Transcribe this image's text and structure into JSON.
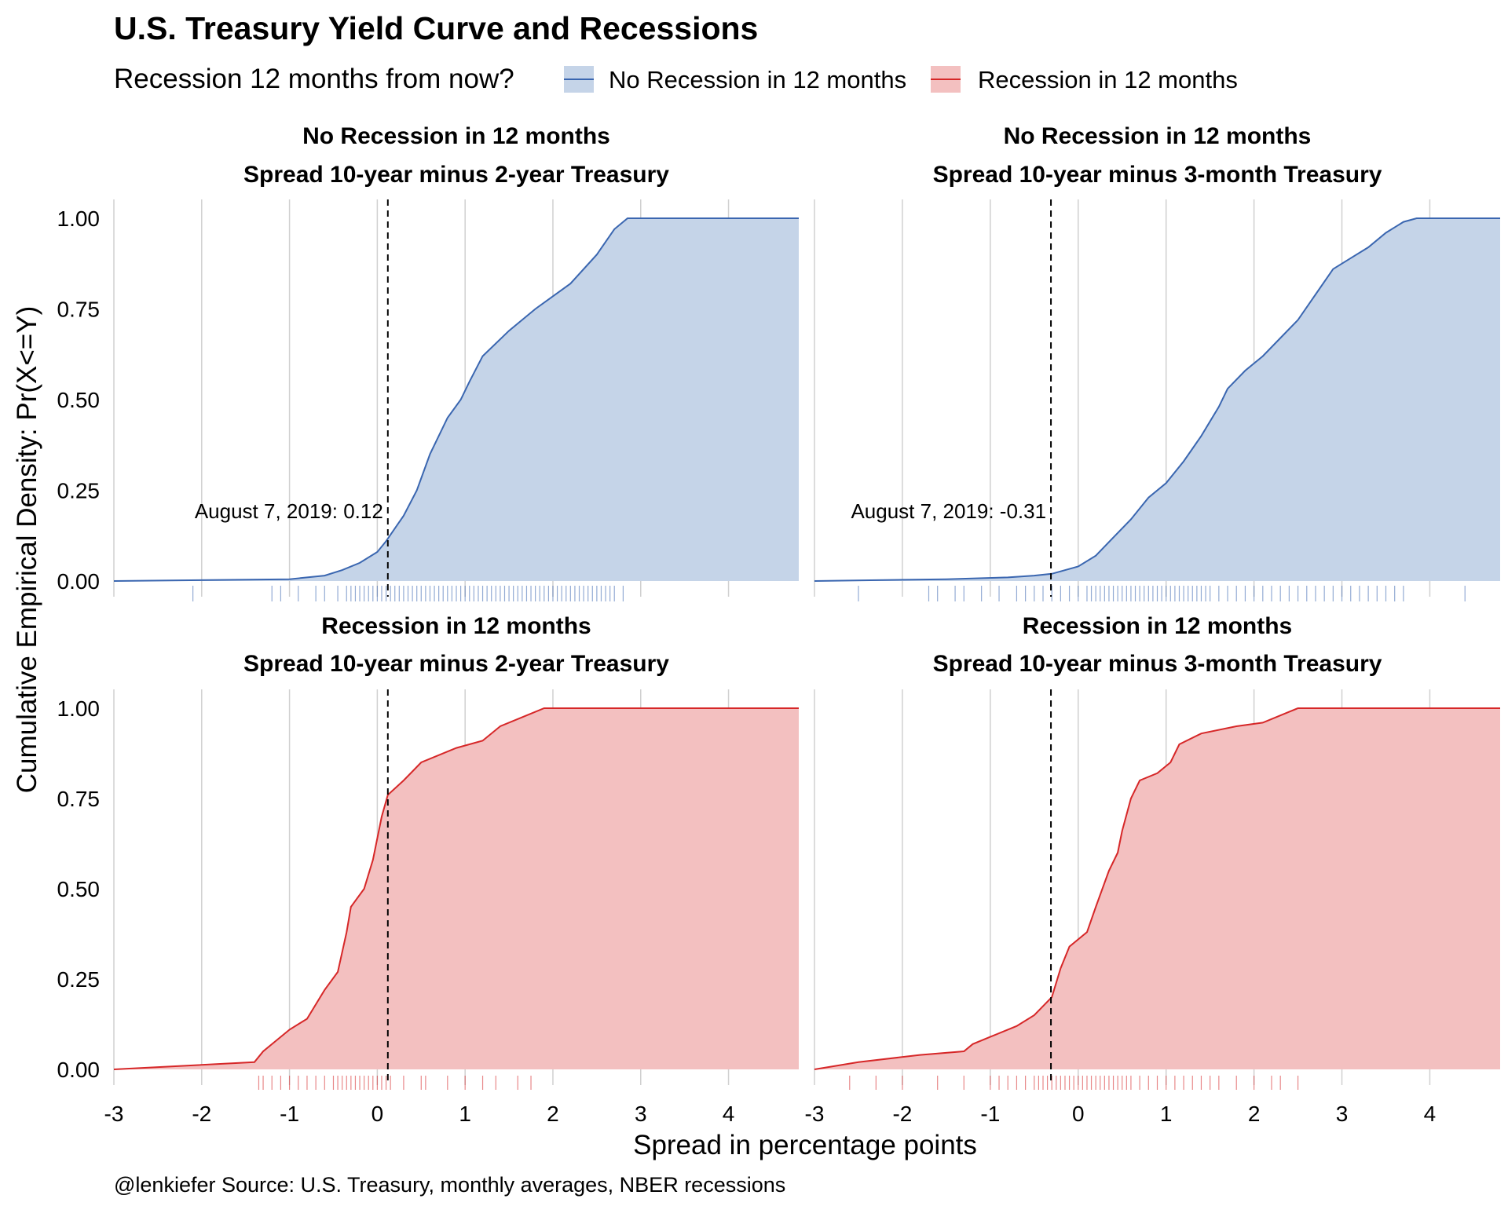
{
  "title": "U.S. Treasury Yield Curve and Recessions",
  "legend": {
    "title": "Recession 12 months from now?",
    "items": [
      {
        "label": "No Recession in 12 months",
        "fill": "#c5d4e8",
        "line": "#3a66b0"
      },
      {
        "label": "Recession in 12 months",
        "fill": "#f3c0c0",
        "line": "#d62728"
      }
    ]
  },
  "xlabel": "Spread in percentage points",
  "ylabel": "Cumulative Empirical Density: Pr(X<=Y)",
  "caption": "@lenkiefer Source: U.S. Treasury, monthly averages, NBER recessions",
  "chart_data": [
    {
      "type": "area",
      "panel": "top-left",
      "strip": [
        "No Recession in 12 months",
        "Spread 10-year minus 2-year Treasury"
      ],
      "series": "No Recession in 12 months",
      "xlim": [
        -3,
        4.8
      ],
      "ylim": [
        0,
        1
      ],
      "x_ticks": [
        -3,
        -2,
        -1,
        0,
        1,
        2,
        3,
        4
      ],
      "y_ticks": [
        "0.00",
        "0.25",
        "0.50",
        "0.75",
        "1.00"
      ],
      "vline": 0.12,
      "annotation": "August 7, 2019: 0.12",
      "points": [
        [
          -3,
          0
        ],
        [
          -1,
          0.005
        ],
        [
          -0.6,
          0.015
        ],
        [
          -0.4,
          0.03
        ],
        [
          -0.2,
          0.05
        ],
        [
          0,
          0.08
        ],
        [
          0.1,
          0.11
        ],
        [
          0.3,
          0.18
        ],
        [
          0.45,
          0.25
        ],
        [
          0.6,
          0.35
        ],
        [
          0.8,
          0.45
        ],
        [
          0.95,
          0.5
        ],
        [
          1.05,
          0.55
        ],
        [
          1.2,
          0.62
        ],
        [
          1.5,
          0.69
        ],
        [
          1.8,
          0.75
        ],
        [
          2.2,
          0.82
        ],
        [
          2.5,
          0.9
        ],
        [
          2.7,
          0.97
        ],
        [
          2.85,
          1.0
        ],
        [
          4.8,
          1.0
        ]
      ],
      "rug": [
        -2.1,
        -1.2,
        -1.1,
        -0.9,
        -0.7,
        -0.6,
        -0.45,
        -0.35,
        -0.3,
        -0.25,
        -0.2,
        -0.15,
        -0.1,
        -0.05,
        0,
        0.05,
        0.1,
        0.15,
        0.2,
        0.25,
        0.3,
        0.35,
        0.4,
        0.45,
        0.5,
        0.55,
        0.6,
        0.65,
        0.7,
        0.75,
        0.8,
        0.85,
        0.9,
        0.95,
        1.0,
        1.05,
        1.1,
        1.15,
        1.2,
        1.25,
        1.3,
        1.35,
        1.4,
        1.45,
        1.5,
        1.55,
        1.6,
        1.65,
        1.7,
        1.75,
        1.8,
        1.85,
        1.9,
        1.95,
        2.0,
        2.05,
        2.1,
        2.15,
        2.2,
        2.25,
        2.3,
        2.35,
        2.4,
        2.45,
        2.5,
        2.55,
        2.6,
        2.65,
        2.7,
        2.8
      ]
    },
    {
      "type": "area",
      "panel": "top-right",
      "strip": [
        "No Recession in 12 months",
        "Spread 10-year minus 3-month Treasury"
      ],
      "series": "No Recession in 12 months",
      "xlim": [
        -3,
        4.8
      ],
      "ylim": [
        0,
        1
      ],
      "x_ticks": [
        -3,
        -2,
        -1,
        0,
        1,
        2,
        3,
        4
      ],
      "y_ticks": [
        "0.00",
        "0.25",
        "0.50",
        "0.75",
        "1.00"
      ],
      "vline": -0.31,
      "annotation": "August 7, 2019: -0.31",
      "points": [
        [
          -3,
          0
        ],
        [
          -1.5,
          0.005
        ],
        [
          -0.8,
          0.01
        ],
        [
          -0.5,
          0.015
        ],
        [
          -0.3,
          0.02
        ],
        [
          0,
          0.04
        ],
        [
          0.2,
          0.07
        ],
        [
          0.4,
          0.12
        ],
        [
          0.6,
          0.17
        ],
        [
          0.8,
          0.23
        ],
        [
          1.0,
          0.27
        ],
        [
          1.2,
          0.33
        ],
        [
          1.4,
          0.4
        ],
        [
          1.6,
          0.48
        ],
        [
          1.7,
          0.53
        ],
        [
          1.9,
          0.58
        ],
        [
          2.1,
          0.62
        ],
        [
          2.3,
          0.67
        ],
        [
          2.5,
          0.72
        ],
        [
          2.7,
          0.79
        ],
        [
          2.9,
          0.86
        ],
        [
          3.1,
          0.89
        ],
        [
          3.3,
          0.92
        ],
        [
          3.5,
          0.96
        ],
        [
          3.7,
          0.99
        ],
        [
          3.85,
          1.0
        ],
        [
          4.8,
          1.0
        ]
      ],
      "rug": [
        -2.5,
        -1.7,
        -1.6,
        -1.4,
        -1.3,
        -1.1,
        -0.9,
        -0.7,
        -0.6,
        -0.5,
        -0.4,
        -0.3,
        -0.2,
        -0.1,
        0,
        0.1,
        0.15,
        0.2,
        0.25,
        0.3,
        0.35,
        0.4,
        0.45,
        0.5,
        0.55,
        0.6,
        0.65,
        0.7,
        0.75,
        0.8,
        0.85,
        0.9,
        0.95,
        1.0,
        1.05,
        1.1,
        1.15,
        1.2,
        1.25,
        1.3,
        1.35,
        1.4,
        1.45,
        1.5,
        1.6,
        1.7,
        1.8,
        1.9,
        2.0,
        2.1,
        2.2,
        2.3,
        2.4,
        2.5,
        2.6,
        2.7,
        2.8,
        2.9,
        3.0,
        3.1,
        3.2,
        3.3,
        3.4,
        3.5,
        3.6,
        3.7,
        4.4
      ]
    },
    {
      "type": "area",
      "panel": "bottom-left",
      "strip": [
        "Recession in 12 months",
        "Spread 10-year minus 2-year Treasury"
      ],
      "series": "Recession in 12 months",
      "xlim": [
        -3,
        4.8
      ],
      "ylim": [
        0,
        1
      ],
      "x_ticks": [
        -3,
        -2,
        -1,
        0,
        1,
        2,
        3,
        4
      ],
      "y_ticks": [
        "0.00",
        "0.25",
        "0.50",
        "0.75",
        "1.00"
      ],
      "vline": 0.12,
      "points": [
        [
          -3,
          0
        ],
        [
          -1.4,
          0.02
        ],
        [
          -1.3,
          0.05
        ],
        [
          -1.1,
          0.09
        ],
        [
          -1.0,
          0.11
        ],
        [
          -0.8,
          0.14
        ],
        [
          -0.6,
          0.22
        ],
        [
          -0.45,
          0.27
        ],
        [
          -0.35,
          0.38
        ],
        [
          -0.3,
          0.45
        ],
        [
          -0.15,
          0.5
        ],
        [
          -0.05,
          0.58
        ],
        [
          0.05,
          0.7
        ],
        [
          0.12,
          0.76
        ],
        [
          0.3,
          0.8
        ],
        [
          0.5,
          0.85
        ],
        [
          0.9,
          0.89
        ],
        [
          1.2,
          0.91
        ],
        [
          1.4,
          0.95
        ],
        [
          1.7,
          0.98
        ],
        [
          1.9,
          1.0
        ],
        [
          4.8,
          1.0
        ]
      ],
      "rug": [
        -1.35,
        -1.3,
        -1.2,
        -1.1,
        -1.0,
        -0.9,
        -0.8,
        -0.7,
        -0.6,
        -0.5,
        -0.45,
        -0.4,
        -0.35,
        -0.3,
        -0.25,
        -0.2,
        -0.15,
        -0.1,
        -0.05,
        0,
        0.05,
        0.1,
        0.15,
        0.3,
        0.5,
        0.55,
        0.8,
        1.0,
        1.2,
        1.35,
        1.6,
        1.75
      ]
    },
    {
      "type": "area",
      "panel": "bottom-right",
      "strip": [
        "Recession in 12 months",
        "Spread 10-year minus 3-month Treasury"
      ],
      "series": "Recession in 12 months",
      "xlim": [
        -3,
        4.8
      ],
      "ylim": [
        0,
        1
      ],
      "x_ticks": [
        -3,
        -2,
        -1,
        0,
        1,
        2,
        3,
        4
      ],
      "y_ticks": [
        "0.00",
        "0.25",
        "0.50",
        "0.75",
        "1.00"
      ],
      "vline": -0.31,
      "points": [
        [
          -3,
          0
        ],
        [
          -2.5,
          0.02
        ],
        [
          -1.8,
          0.04
        ],
        [
          -1.3,
          0.05
        ],
        [
          -1.2,
          0.07
        ],
        [
          -1.0,
          0.09
        ],
        [
          -0.7,
          0.12
        ],
        [
          -0.5,
          0.15
        ],
        [
          -0.3,
          0.2
        ],
        [
          -0.2,
          0.28
        ],
        [
          -0.1,
          0.34
        ],
        [
          0.1,
          0.38
        ],
        [
          0.2,
          0.45
        ],
        [
          0.35,
          0.55
        ],
        [
          0.45,
          0.6
        ],
        [
          0.5,
          0.66
        ],
        [
          0.6,
          0.75
        ],
        [
          0.7,
          0.8
        ],
        [
          0.9,
          0.82
        ],
        [
          1.05,
          0.85
        ],
        [
          1.15,
          0.9
        ],
        [
          1.4,
          0.93
        ],
        [
          1.8,
          0.95
        ],
        [
          2.1,
          0.96
        ],
        [
          2.4,
          0.99
        ],
        [
          2.5,
          1.0
        ],
        [
          4.8,
          1.0
        ]
      ],
      "rug": [
        -2.6,
        -2.3,
        -2.0,
        -1.6,
        -1.3,
        -1.0,
        -0.9,
        -0.8,
        -0.7,
        -0.6,
        -0.5,
        -0.45,
        -0.4,
        -0.35,
        -0.3,
        -0.25,
        -0.2,
        -0.15,
        -0.1,
        -0.05,
        0,
        0.05,
        0.1,
        0.15,
        0.2,
        0.25,
        0.3,
        0.35,
        0.4,
        0.45,
        0.5,
        0.55,
        0.6,
        0.7,
        0.8,
        0.9,
        1.0,
        1.1,
        1.2,
        1.3,
        1.4,
        1.5,
        1.6,
        1.8,
        2.0,
        2.2,
        2.3,
        2.5
      ]
    }
  ]
}
